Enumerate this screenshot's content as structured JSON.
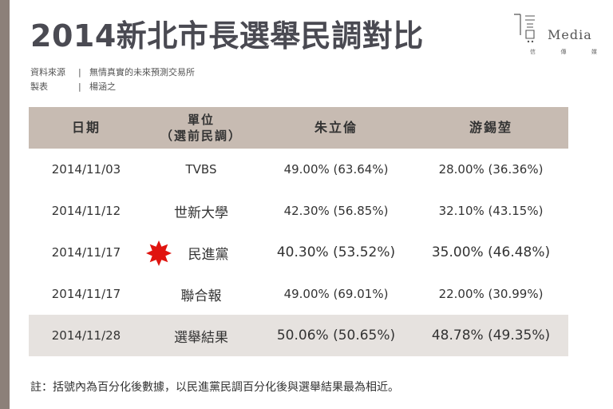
{
  "title": "2014新北市長選舉民調對比",
  "logo": {
    "wordmark": "Media",
    "subtitle": [
      "信",
      "傳",
      "媒"
    ]
  },
  "meta": [
    {
      "key": "資料來源",
      "value": "無情真實的未來預測交易所"
    },
    {
      "key": "製表",
      "value": "楊涵之"
    }
  ],
  "table": {
    "headers": {
      "date": "日期",
      "unit_line1": "單位",
      "unit_line2": "（選前民調）",
      "cand1": "朱立倫",
      "cand2": "游錫堃"
    },
    "rows": [
      {
        "date": "2014/11/03",
        "unit": "TVBS",
        "cand1": "49.00% (63.64%)",
        "cand2": "28.00% (36.36%)"
      },
      {
        "date": "2014/11/12",
        "unit": "世新大學",
        "cand1": "42.30% (56.85%)",
        "cand2": "32.10% (43.15%)"
      },
      {
        "date": "2014/11/17",
        "unit": "民進黨",
        "cand1": "40.30% (53.52%)",
        "cand2": "35.00% (46.48%)"
      },
      {
        "date": "2014/11/17",
        "unit": "聯合報",
        "cand1": "49.00% (69.01%)",
        "cand2": "22.00% (30.99%)"
      },
      {
        "date": "2014/11/28",
        "unit": "選舉結果",
        "cand1": "50.06% (50.65%)",
        "cand2": "48.78% (49.35%)"
      }
    ]
  },
  "note": "註：括號內為百分化後數據，以民進黨民調百分化後與選舉結果最為相近。",
  "colors": {
    "header_bg": "#c7bbb2",
    "result_bg": "#e6e2df",
    "star": "#e0140f",
    "side_bar": "#8c8079"
  },
  "icons": {
    "highlight": "red-star-icon",
    "logo": "media-logo-icon"
  }
}
